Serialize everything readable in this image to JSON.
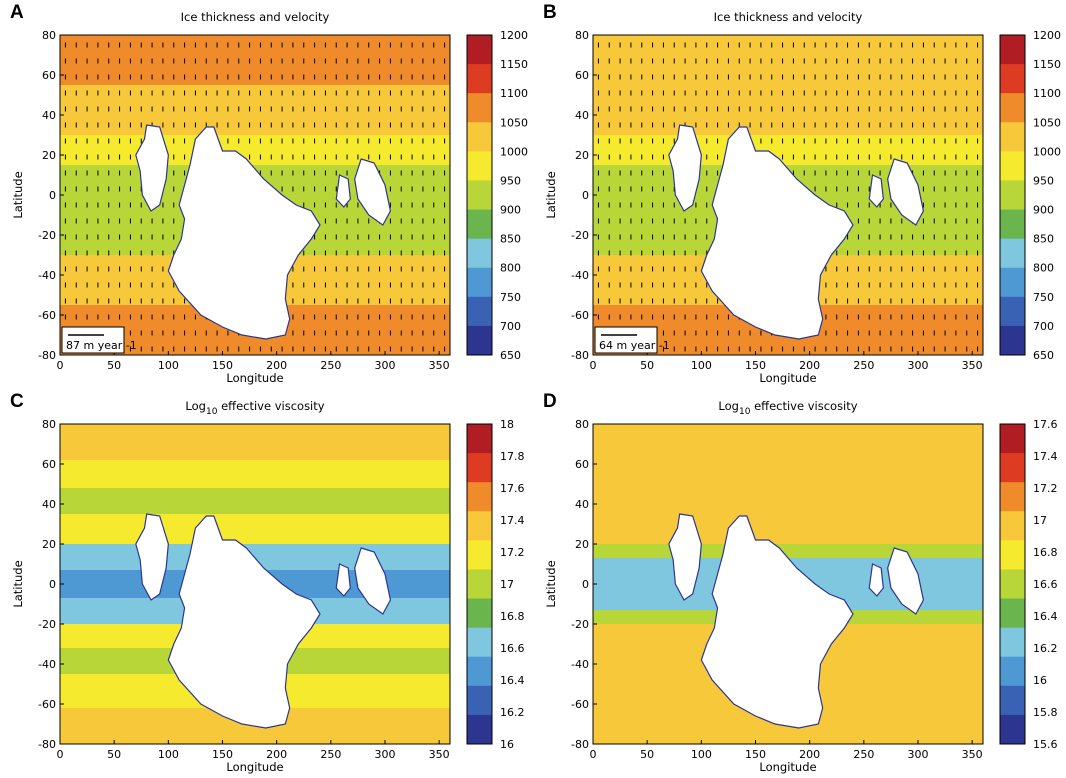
{
  "colors": {
    "scale": [
      "#2c3590",
      "#3a62b4",
      "#4e98d4",
      "#7fc6df",
      "#6ab54d",
      "#b8d638",
      "#f6ea2e",
      "#f7c93a",
      "#ef8b2a",
      "#dd3b22",
      "#b01e23"
    ],
    "land": "#ffffff",
    "arrow": "#000000"
  },
  "chart_data": [
    {
      "id": "A",
      "type": "heatmap",
      "panel_label": "A",
      "title": "Ice thickness and velocity",
      "xlabel": "Longitude",
      "ylabel": "Latitude",
      "xlim": [
        0,
        360
      ],
      "ylim": [
        -80,
        80
      ],
      "x_ticks": [
        "0",
        "50",
        "100",
        "150",
        "200",
        "250",
        "300",
        "350"
      ],
      "y_ticks": [
        "80",
        "60",
        "40",
        "20",
        "0",
        "-20",
        "-40",
        "-60",
        "-80"
      ],
      "colorbar_ticks": [
        "1200",
        "1150",
        "1100",
        "1050",
        "1000",
        "950",
        "900",
        "850",
        "800",
        "750",
        "700",
        "650"
      ],
      "colorbar_range": [
        650,
        1200
      ],
      "velocity_scale_value": "87",
      "velocity_scale_unit": "m year",
      "velocity_scale_exponent": "-1",
      "latitude_bands": [
        {
          "from": 55,
          "to": 80,
          "value": 1080
        },
        {
          "from": 30,
          "to": 55,
          "value": 1010
        },
        {
          "from": 15,
          "to": 30,
          "value": 960
        },
        {
          "from": -30,
          "to": 15,
          "value": 930
        },
        {
          "from": -55,
          "to": -30,
          "value": 1000
        },
        {
          "from": -80,
          "to": -55,
          "value": 1080
        }
      ]
    },
    {
      "id": "B",
      "type": "heatmap",
      "panel_label": "B",
      "title": "Ice thickness and velocity",
      "xlabel": "Longitude",
      "ylabel": "Latitude",
      "xlim": [
        0,
        360
      ],
      "ylim": [
        -80,
        80
      ],
      "x_ticks": [
        "0",
        "50",
        "100",
        "150",
        "200",
        "250",
        "300",
        "350"
      ],
      "y_ticks": [
        "80",
        "60",
        "40",
        "20",
        "0",
        "-20",
        "-40",
        "-60",
        "-80"
      ],
      "colorbar_ticks": [
        "1200",
        "1150",
        "1100",
        "1050",
        "1000",
        "950",
        "900",
        "850",
        "800",
        "750",
        "700",
        "650"
      ],
      "colorbar_range": [
        650,
        1200
      ],
      "velocity_scale_value": "64",
      "velocity_scale_unit": "m year",
      "velocity_scale_exponent": "-1",
      "latitude_bands": [
        {
          "from": 30,
          "to": 80,
          "value": 1010
        },
        {
          "from": 15,
          "to": 30,
          "value": 960
        },
        {
          "from": -30,
          "to": 15,
          "value": 930
        },
        {
          "from": -55,
          "to": -30,
          "value": 1000
        },
        {
          "from": -80,
          "to": -55,
          "value": 1050
        }
      ]
    },
    {
      "id": "C",
      "type": "heatmap",
      "panel_label": "C",
      "title_prefix": "Log",
      "title_subscript": "10",
      "title_suffix": " effective viscosity",
      "xlabel": "Longitude",
      "ylabel": "Latitude",
      "xlim": [
        0,
        360
      ],
      "ylim": [
        -80,
        80
      ],
      "x_ticks": [
        "0",
        "50",
        "100",
        "150",
        "200",
        "250",
        "300",
        "350"
      ],
      "y_ticks": [
        "80",
        "60",
        "40",
        "20",
        "0",
        "-20",
        "-40",
        "-60",
        "-80"
      ],
      "colorbar_ticks": [
        "18",
        "17.8",
        "17.6",
        "17.4",
        "17.2",
        "17",
        "16.8",
        "16.6",
        "16.4",
        "16.2",
        "16"
      ],
      "colorbar_range": [
        15.9,
        18.0
      ],
      "latitude_bands": [
        {
          "from": 62,
          "to": 80,
          "value": 17.3
        },
        {
          "from": 48,
          "to": 62,
          "value": 17.15
        },
        {
          "from": 35,
          "to": 48,
          "value": 16.9
        },
        {
          "from": 20,
          "to": 35,
          "value": 17.15
        },
        {
          "from": 7,
          "to": 20,
          "value": 16.65
        },
        {
          "from": -7,
          "to": 7,
          "value": 16.4
        },
        {
          "from": -20,
          "to": -7,
          "value": 16.65
        },
        {
          "from": -32,
          "to": -20,
          "value": 17.15
        },
        {
          "from": -45,
          "to": -32,
          "value": 16.9
        },
        {
          "from": -62,
          "to": -45,
          "value": 17.15
        },
        {
          "from": -80,
          "to": -62,
          "value": 17.3
        }
      ]
    },
    {
      "id": "D",
      "type": "heatmap",
      "panel_label": "D",
      "title_prefix": "Log",
      "title_subscript": "10",
      "title_suffix": " effective viscosity",
      "xlabel": "Longitude",
      "ylabel": "Latitude",
      "xlim": [
        0,
        360
      ],
      "ylim": [
        -80,
        80
      ],
      "x_ticks": [
        "0",
        "50",
        "100",
        "150",
        "200",
        "250",
        "300",
        "350"
      ],
      "y_ticks": [
        "80",
        "60",
        "40",
        "20",
        "0",
        "-20",
        "-40",
        "-60",
        "-80"
      ],
      "colorbar_ticks": [
        "17.6",
        "17.4",
        "17.2",
        "17",
        "16.8",
        "16.6",
        "16.4",
        "16.2",
        "16",
        "15.8",
        "15.6"
      ],
      "colorbar_range": [
        15.5,
        17.6
      ],
      "latitude_bands": [
        {
          "from": 58,
          "to": 80,
          "value": 17.0
        },
        {
          "from": 30,
          "to": 58,
          "value": 16.85
        },
        {
          "from": 20,
          "to": 30,
          "value": 17.0
        },
        {
          "from": 13,
          "to": 20,
          "value": 16.5
        },
        {
          "from": -13,
          "to": 13,
          "value": 16.25
        },
        {
          "from": -20,
          "to": -13,
          "value": 16.5
        },
        {
          "from": -30,
          "to": -20,
          "value": 17.0
        },
        {
          "from": -55,
          "to": -30,
          "value": 16.85
        },
        {
          "from": -80,
          "to": -55,
          "value": 17.0
        }
      ]
    }
  ]
}
